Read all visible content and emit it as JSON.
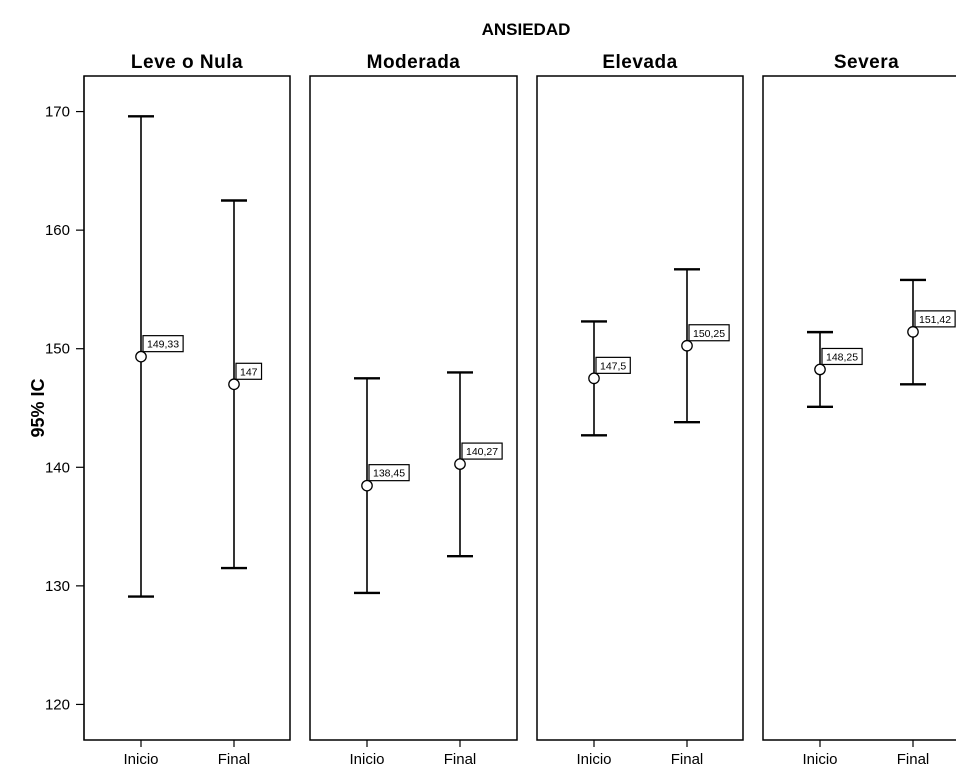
{
  "chart_data": {
    "type": "errorbar",
    "title": "ANSIEDAD",
    "ylabel": "95% IC",
    "ylim": [
      117,
      173
    ],
    "yticks": [
      120,
      130,
      140,
      150,
      160,
      170
    ],
    "categories": [
      "Inicio",
      "Final"
    ],
    "panels": [
      {
        "name": "Leve o Nula",
        "points": [
          {
            "category": "Inicio",
            "mean": 149.33,
            "lower": 129.1,
            "upper": 169.6,
            "label": "149,33"
          },
          {
            "category": "Final",
            "mean": 147.0,
            "lower": 131.5,
            "upper": 162.5,
            "label": "147"
          }
        ]
      },
      {
        "name": "Moderada",
        "points": [
          {
            "category": "Inicio",
            "mean": 138.45,
            "lower": 129.4,
            "upper": 147.5,
            "label": "138,45"
          },
          {
            "category": "Final",
            "mean": 140.27,
            "lower": 132.5,
            "upper": 148.0,
            "label": "140,27"
          }
        ]
      },
      {
        "name": "Elevada",
        "points": [
          {
            "category": "Inicio",
            "mean": 147.5,
            "lower": 142.7,
            "upper": 152.3,
            "label": "147,5"
          },
          {
            "category": "Final",
            "mean": 150.25,
            "lower": 143.8,
            "upper": 156.7,
            "label": "150,25"
          }
        ]
      },
      {
        "name": "Severa",
        "points": [
          {
            "category": "Inicio",
            "mean": 148.25,
            "lower": 145.1,
            "upper": 151.4,
            "label": "148,25"
          },
          {
            "category": "Final",
            "mean": 151.42,
            "lower": 147.0,
            "upper": 155.8,
            "label": "151,42"
          }
        ]
      }
    ]
  }
}
